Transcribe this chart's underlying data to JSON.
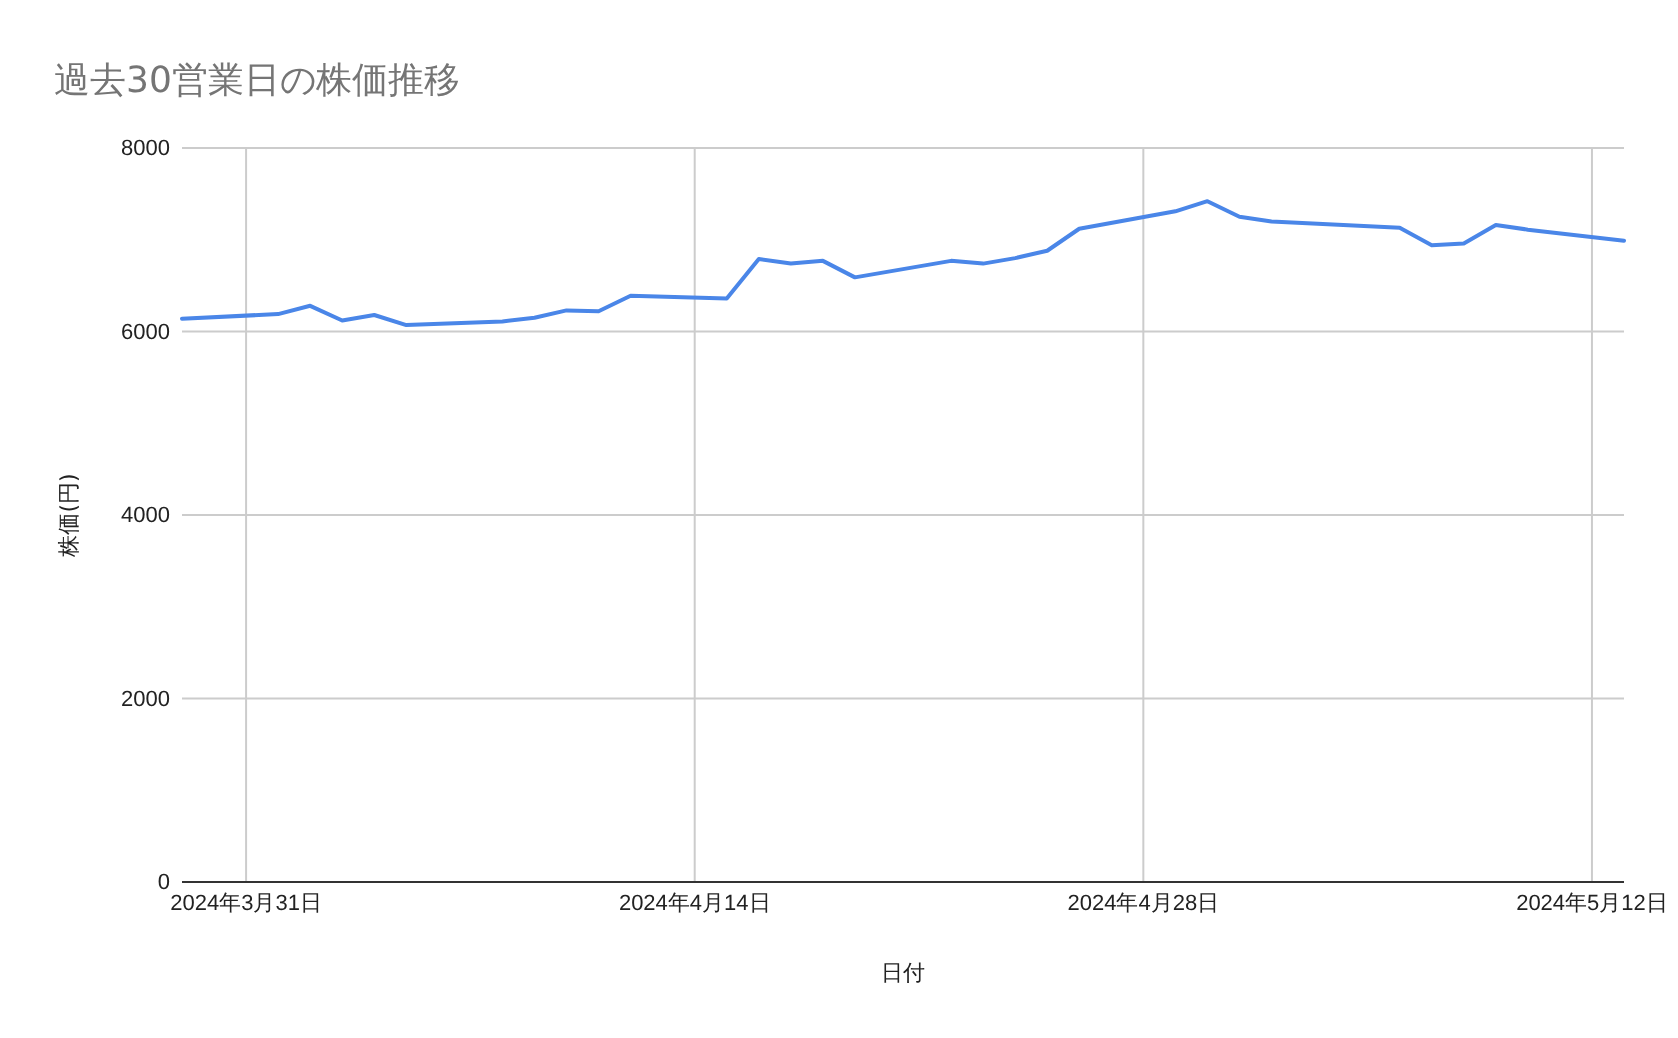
{
  "chart_data": {
    "type": "line",
    "title": "過去30営業日の株価推移",
    "xlabel": "日付",
    "ylabel": "株価(円)",
    "x": [
      "2024-03-29",
      "2024-04-01",
      "2024-04-02",
      "2024-04-03",
      "2024-04-04",
      "2024-04-05",
      "2024-04-08",
      "2024-04-09",
      "2024-04-10",
      "2024-04-11",
      "2024-04-12",
      "2024-04-15",
      "2024-04-16",
      "2024-04-17",
      "2024-04-18",
      "2024-04-19",
      "2024-04-22",
      "2024-04-23",
      "2024-04-24",
      "2024-04-25",
      "2024-04-26",
      "2024-04-29",
      "2024-04-30",
      "2024-05-01",
      "2024-05-02",
      "2024-05-06",
      "2024-05-07",
      "2024-05-08",
      "2024-05-09",
      "2024-05-10",
      "2024-05-13"
    ],
    "series": [
      {
        "color": "#4a86e8",
        "values": [
          6140,
          6190,
          6280,
          6120,
          6180,
          6070,
          6110,
          6150,
          6230,
          6220,
          6390,
          6360,
          6790,
          6740,
          6770,
          6590,
          6770,
          6740,
          6800,
          6880,
          7120,
          7310,
          7420,
          7250,
          7200,
          7130,
          6940,
          6960,
          7160,
          7110,
          6990
        ]
      }
    ],
    "xlim": [
      "2024-03-29",
      "2024-05-13"
    ],
    "xticks": [
      {
        "value": "2024-03-31",
        "label": "2024年3月31日"
      },
      {
        "value": "2024-04-14",
        "label": "2024年4月14日"
      },
      {
        "value": "2024-04-28",
        "label": "2024年4月28日"
      },
      {
        "value": "2024-05-12",
        "label": "2024年5月12日"
      }
    ],
    "ylim": [
      0,
      8000
    ],
    "yticks": [
      0,
      2000,
      4000,
      6000,
      8000
    ],
    "grid": true,
    "line_style": "solid",
    "marker": "none"
  }
}
